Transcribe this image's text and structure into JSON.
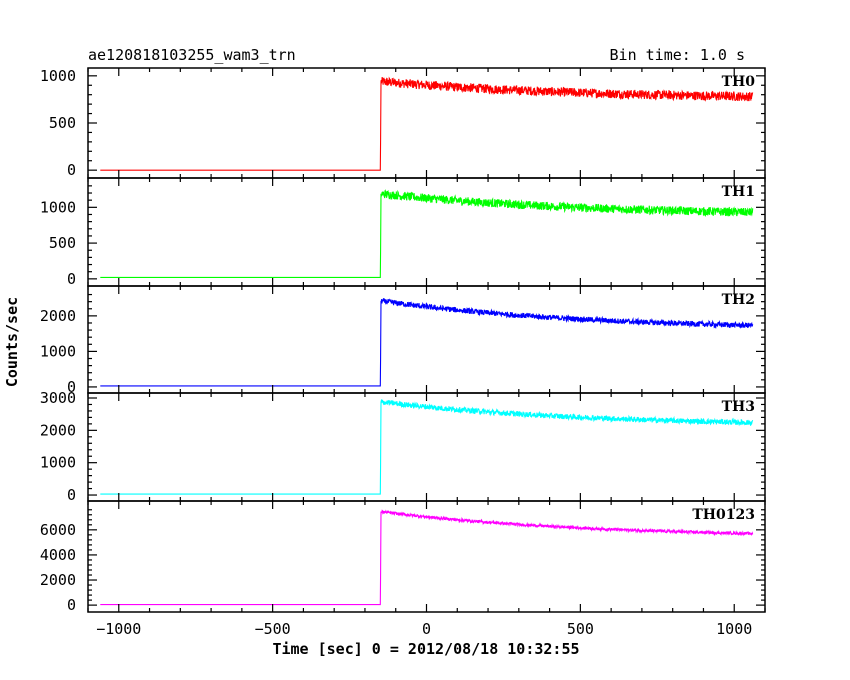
{
  "chart_data": {
    "type": "line",
    "title": "ae120818103255_wam3_trn",
    "subtitle": "Bin time: 1.0 s",
    "xlabel": "Time [sec] 0 = 2012/08/18 10:32:55",
    "ylabel": "Counts/sec",
    "xlim": [
      -1100,
      1100
    ],
    "x_ticks": [
      -1000,
      -500,
      0,
      500,
      1000
    ],
    "x_tick_labels": [
      "−1000",
      "−500",
      "0",
      "500",
      "1000"
    ],
    "onset_time": -150,
    "x_start": -1060,
    "x_end": 1060,
    "grid": false,
    "series": [
      {
        "name": "TH0",
        "color": "#ff0000",
        "pre_level": 0,
        "peak": 940,
        "end": 780,
        "noise": 70,
        "ylim": [
          -30,
          1030
        ],
        "y_ticks": [
          0,
          500,
          1000
        ],
        "y_tick_labels": [
          "0",
          "500",
          "1000"
        ]
      },
      {
        "name": "TH1",
        "color": "#00ff00",
        "pre_level": 20,
        "peak": 1190,
        "end": 930,
        "noise": 85,
        "ylim": [
          -30,
          1340
        ],
        "y_ticks": [
          0,
          500,
          1000
        ],
        "y_tick_labels": [
          "0",
          "500",
          "1000"
        ]
      },
      {
        "name": "TH2",
        "color": "#0000ff",
        "pre_level": 30,
        "peak": 2420,
        "end": 1730,
        "noise": 110,
        "ylim": [
          -30,
          2700
        ],
        "y_ticks": [
          0,
          1000,
          2000
        ],
        "y_tick_labels": [
          "0",
          "1000",
          "2000"
        ]
      },
      {
        "name": "TH3",
        "color": "#00ffff",
        "pre_level": 30,
        "peak": 2880,
        "end": 2240,
        "noise": 120,
        "ylim": [
          -30,
          3000
        ],
        "y_ticks": [
          0,
          1000,
          2000,
          3000
        ],
        "y_tick_labels": [
          "0",
          "1000",
          "2000",
          "3000"
        ]
      },
      {
        "name": "TH0123",
        "color": "#ff00ff",
        "pre_level": 40,
        "peak": 7450,
        "end": 5700,
        "noise": 160,
        "ylim": [
          -150,
          7900
        ],
        "y_ticks": [
          0,
          2000,
          4000,
          6000
        ],
        "y_tick_labels": [
          "0",
          "2000",
          "4000",
          "6000"
        ]
      }
    ]
  }
}
